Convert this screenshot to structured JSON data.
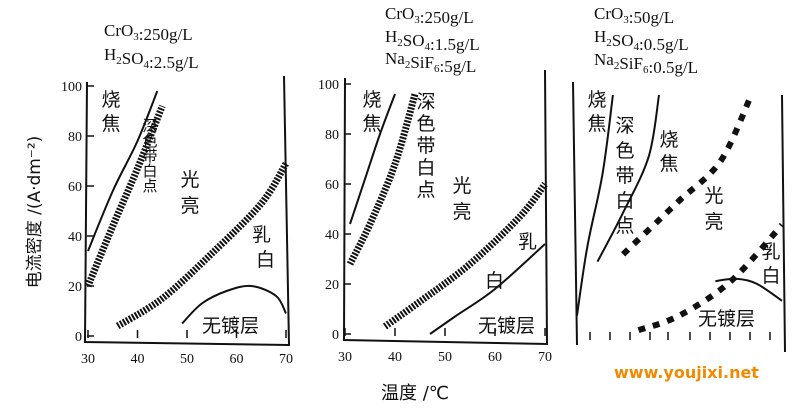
{
  "y_axis_label": "电流密度 /(A·dm⁻²)",
  "x_axis_label": "温度 /℃",
  "watermark": "www.youjixi.net",
  "chart_data": [
    {
      "type": "line",
      "conditions": [
        "CrO3:250g/L",
        "H2SO4:2.5g/L"
      ],
      "xlim": [
        30,
        70
      ],
      "ylim": [
        0,
        100
      ],
      "x_ticks": [
        30,
        40,
        50,
        60,
        70
      ],
      "y_ticks": [
        0,
        20,
        40,
        60,
        80,
        100
      ],
      "regions": [
        "烧焦",
        "深色带白点",
        "光亮",
        "乳白",
        "无镀层"
      ],
      "boundaries": [
        {
          "style": "thin",
          "points": [
            [
              30,
              34
            ],
            [
              35,
              58
            ],
            [
              40,
              78
            ],
            [
              44,
              98
            ]
          ]
        },
        {
          "style": "thick",
          "points": [
            [
              30,
              20
            ],
            [
              35,
              44
            ],
            [
              40,
              67
            ],
            [
              45,
              92
            ]
          ]
        },
        {
          "style": "thick",
          "points": [
            [
              36,
              4
            ],
            [
              45,
              15
            ],
            [
              55,
              33
            ],
            [
              65,
              53
            ],
            [
              70,
              69
            ]
          ]
        },
        {
          "style": "thin",
          "points": [
            [
              49,
              5
            ],
            [
              53,
              13
            ],
            [
              58,
              18
            ],
            [
              63,
              20
            ],
            [
              68,
              16
            ],
            [
              70,
              9
            ]
          ]
        }
      ]
    },
    {
      "type": "line",
      "conditions": [
        "CrO3:250g/L",
        "H2SO4:1.5g/L",
        "Na2SiF6:5g/L"
      ],
      "xlim": [
        30,
        70
      ],
      "ylim": [
        0,
        100
      ],
      "x_ticks": [
        30,
        40,
        50,
        60,
        70
      ],
      "y_ticks": [
        0,
        20,
        40,
        60,
        80,
        100
      ],
      "regions": [
        "烧焦",
        "深色带白点",
        "光亮",
        "乳白",
        "白",
        "无镀层"
      ],
      "boundaries": [
        {
          "style": "thin",
          "points": [
            [
              31,
              44
            ],
            [
              34,
              62
            ],
            [
              37,
              80
            ],
            [
              40,
              96
            ]
          ]
        },
        {
          "style": "thick",
          "points": [
            [
              31,
              28
            ],
            [
              35,
              44
            ],
            [
              40,
              68
            ],
            [
              44,
              96
            ]
          ]
        },
        {
          "style": "thick",
          "points": [
            [
              38,
              3
            ],
            [
              45,
              13
            ],
            [
              55,
              28
            ],
            [
              65,
              47
            ],
            [
              70,
              60
            ]
          ]
        },
        {
          "style": "thin",
          "points": [
            [
              47,
              0
            ],
            [
              52,
              7
            ],
            [
              60,
              18
            ],
            [
              70,
              36
            ]
          ]
        }
      ]
    },
    {
      "type": "line",
      "conditions": [
        "CrO3:50g/L",
        "H2SO4:0.5g/L",
        "Na2SiF6:0.5g/L"
      ],
      "xlim": [
        30,
        70
      ],
      "ylim": [
        0,
        100
      ],
      "x_ticks": [],
      "y_ticks": [],
      "regions": [
        "烧焦",
        "深色带白点",
        "烧焦",
        "光亮",
        "乳白",
        "无镀层"
      ],
      "boundaries": [
        {
          "style": "thin",
          "points": [
            [
              30,
              10
            ],
            [
              32,
              38
            ],
            [
              35,
              68
            ],
            [
              37,
              100
            ]
          ]
        },
        {
          "style": "thin",
          "points": [
            [
              34,
              32
            ],
            [
              39,
              52
            ],
            [
              44,
              75
            ],
            [
              46,
              100
            ]
          ]
        },
        {
          "style": "thick-dashed",
          "points": [
            [
              39,
              35
            ],
            [
              45,
              47
            ],
            [
              50,
              57
            ],
            [
              58,
              73
            ],
            [
              64,
              100
            ]
          ]
        },
        {
          "style": "thick-dashed",
          "points": [
            [
              42,
              4
            ],
            [
              50,
              10
            ],
            [
              60,
              24
            ],
            [
              70,
              47
            ]
          ]
        },
        {
          "style": "thin",
          "points": [
            [
              57,
              24
            ],
            [
              61,
              25
            ],
            [
              65,
              23
            ],
            [
              70,
              16
            ]
          ]
        }
      ]
    }
  ],
  "panels": [
    {
      "cond": [
        {
          "t": "CrO",
          "s": "3",
          "r": ":250g/L"
        },
        {
          "t": "H",
          "s": "2",
          "r": "SO",
          "s2": "4",
          "r2": ":2.5g/L"
        }
      ],
      "x_ticks": [
        "30",
        "40",
        "50",
        "60",
        "70"
      ],
      "y_ticks": [
        "0",
        "20",
        "40",
        "60",
        "80",
        "100"
      ],
      "labels": {
        "shaojiao": "烧焦",
        "shense": "深色带白点",
        "guangliang": "光亮",
        "ru": "乳",
        "bai": "白",
        "wudu": "无镀层"
      }
    },
    {
      "cond": [
        {
          "t": "CrO",
          "s": "3",
          "r": ":250g/L"
        },
        {
          "t": "H",
          "s": "2",
          "r": "SO",
          "s2": "4",
          "r2": ":1.5g/L"
        },
        {
          "t": "Na",
          "s": "2",
          "r": "SiF",
          "s2": "6",
          "r2": ":5g/L"
        }
      ],
      "x_ticks": [
        "30",
        "40",
        "50",
        "60",
        "70"
      ],
      "y_ticks": [
        "0",
        "20",
        "40",
        "60",
        "80",
        "100"
      ],
      "labels": {
        "shaojiao": "烧焦",
        "shense": "深色带白点",
        "guangliang": "光亮",
        "ru": "乳",
        "bai": "白",
        "wudu": "无镀层"
      }
    },
    {
      "cond": [
        {
          "t": "CrO",
          "s": "3",
          "r": ":50g/L"
        },
        {
          "t": "H",
          "s": "2",
          "r": "SO",
          "s2": "4",
          "r2": ":0.5g/L"
        },
        {
          "t": "Na",
          "s": "2",
          "r": "SiF",
          "s2": "6",
          "r2": ":0.5g/L"
        }
      ],
      "labels": {
        "shaojiao": "烧焦",
        "shense": "深色带白点",
        "shaojiao2": "烧焦",
        "guangliang": "光亮",
        "rubai": "乳白",
        "wudu": "无镀层"
      }
    }
  ]
}
